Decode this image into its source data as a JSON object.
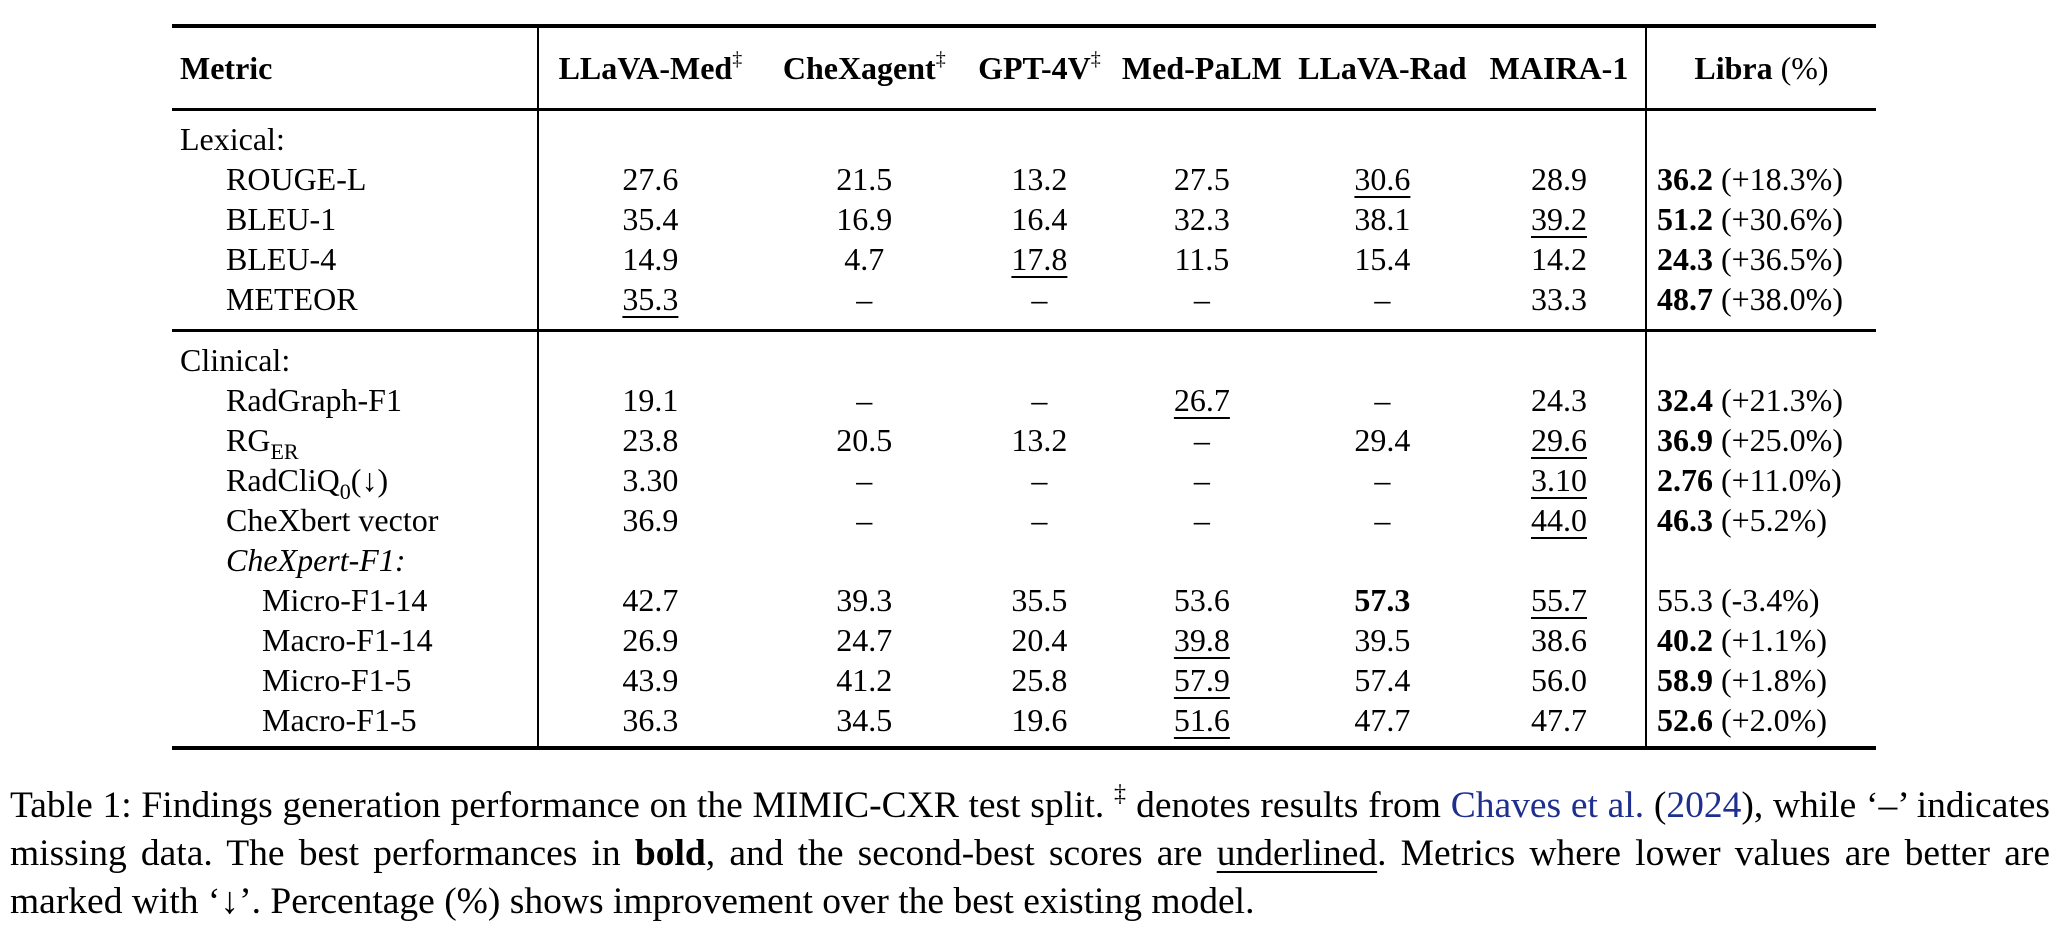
{
  "table": {
    "headers": {
      "metric": "Metric",
      "models": [
        "LLaVA-Med",
        "CheXagent",
        "GPT-4V",
        "Med-PaLM",
        "LLaVA-Rad",
        "MAIRA-1"
      ],
      "dagger": "‡",
      "libra_name": "Libra",
      "libra_pct": "(%)"
    },
    "lexical": {
      "title": "Lexical:",
      "rows": [
        {
          "metric": "ROUGE-L",
          "values": [
            "27.6",
            "21.5",
            "13.2",
            "27.5",
            "30.6",
            "28.9"
          ],
          "libra": "36.2",
          "libra_pct": "(+18.3%)"
        },
        {
          "metric": "BLEU-1",
          "values": [
            "35.4",
            "16.9",
            "16.4",
            "32.3",
            "38.1",
            "39.2"
          ],
          "libra": "51.2",
          "libra_pct": "(+30.6%)"
        },
        {
          "metric": "BLEU-4",
          "values": [
            "14.9",
            "4.7",
            "17.8",
            "11.5",
            "15.4",
            "14.2"
          ],
          "libra": "24.3",
          "libra_pct": "(+36.5%)"
        },
        {
          "metric": "METEOR",
          "values": [
            "35.3",
            "–",
            "–",
            "–",
            "–",
            "33.3"
          ],
          "libra": "48.7",
          "libra_pct": "(+38.0%)"
        }
      ]
    },
    "clinical": {
      "title": "Clinical:",
      "rows": [
        {
          "metric": "RadGraph-F1",
          "values": [
            "19.1",
            "–",
            "–",
            "26.7",
            "–",
            "24.3"
          ],
          "libra": "32.4",
          "libra_pct": "(+21.3%)"
        },
        {
          "metric_main": "RG",
          "metric_sub": "ER",
          "values": [
            "23.8",
            "20.5",
            "13.2",
            "–",
            "29.4",
            "29.6"
          ],
          "libra": "36.9",
          "libra_pct": "(+25.0%)"
        },
        {
          "metric_main": "RadCliQ",
          "metric_sub": "0",
          "metric_tail": "(↓)",
          "values": [
            "3.30",
            "–",
            "–",
            "–",
            "–",
            "3.10"
          ],
          "libra": "2.76",
          "libra_pct": "(+11.0%)"
        },
        {
          "metric": "CheXbert vector",
          "values": [
            "36.9",
            "–",
            "–",
            "–",
            "–",
            "44.0"
          ],
          "libra": "46.3",
          "libra_pct": "(+5.2%)"
        }
      ],
      "subgroup_title": "CheXpert-F1:",
      "subrows": [
        {
          "metric": "Micro-F1-14",
          "values": [
            "42.7",
            "39.3",
            "35.5",
            "53.6",
            "57.3",
            "55.7"
          ],
          "libra": "55.3",
          "libra_pct": "(-3.4%)"
        },
        {
          "metric": "Macro-F1-14",
          "values": [
            "26.9",
            "24.7",
            "20.4",
            "39.8",
            "39.5",
            "38.6"
          ],
          "libra": "40.2",
          "libra_pct": "(+1.1%)"
        },
        {
          "metric": "Micro-F1-5",
          "values": [
            "43.9",
            "41.2",
            "25.8",
            "57.9",
            "57.4",
            "56.0"
          ],
          "libra": "58.9",
          "libra_pct": "(+1.8%)"
        },
        {
          "metric": "Macro-F1-5",
          "values": [
            "36.3",
            "34.5",
            "19.6",
            "51.6",
            "47.7",
            "47.7"
          ],
          "libra": "52.6",
          "libra_pct": "(+2.0%)"
        }
      ]
    }
  },
  "caption": {
    "label": "Table 1:",
    "part1": "Findings generation performance on the MIMIC-CXR test split.",
    "dagger": "‡",
    "part2": "denotes results from",
    "cite_author": "Chaves et al.",
    "cite_year": "2024",
    "part3": "while ‘–’ indicates missing data. The best performances in",
    "bold_word": "bold",
    "part4": ", and the second-best scores are",
    "underline_word": "underlined",
    "part5": ". Metrics where lower values are better are marked with ‘↓’. Percentage (%) shows improvement over the best existing model."
  }
}
